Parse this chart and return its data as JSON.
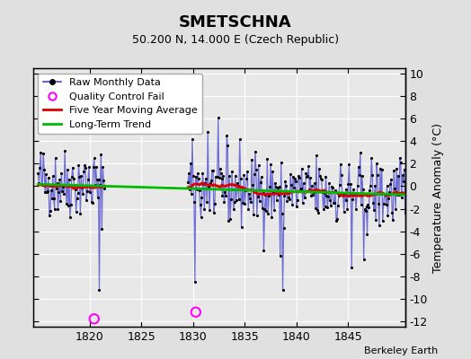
{
  "title": "SMETSCHNA",
  "subtitle": "50.200 N, 14.000 E (Czech Republic)",
  "ylabel": "Temperature Anomaly (°C)",
  "credit": "Berkeley Earth",
  "xlim": [
    1814.5,
    1850.5
  ],
  "ylim": [
    -12.5,
    10.5
  ],
  "yticks": [
    -12,
    -10,
    -8,
    -6,
    -4,
    -2,
    0,
    2,
    4,
    6,
    8,
    10
  ],
  "xticks": [
    1820,
    1825,
    1830,
    1835,
    1840,
    1845
  ],
  "bg_color": "#e0e0e0",
  "plot_bg_color": "#e8e8e8",
  "raw_color": "#4444cc",
  "ma_color": "#dd0000",
  "trend_color": "#00bb00",
  "qc_color": "#ff00ff",
  "grid_color": "#d0d0d0",
  "seed": 42,
  "n_years": 36,
  "start_year": 1815,
  "gap_start_year": 1821.5,
  "gap_end_year": 1829.5,
  "qc_fail_points": [
    [
      1820.42,
      -11.8
    ],
    [
      1830.25,
      -11.2
    ]
  ]
}
